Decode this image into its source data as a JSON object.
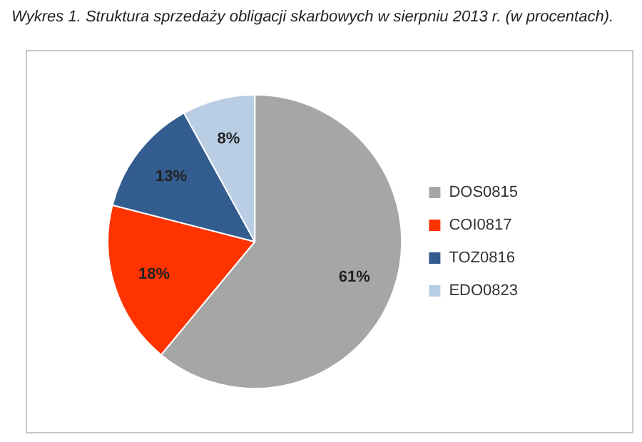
{
  "chart_data": {
    "type": "pie",
    "title": "Wykres 1. Struktura sprzedaży obligacji skarbowych w sierpniu 2013 r. (w procentach).",
    "categories": [
      "DOS0815",
      "COI0817",
      "TOZ0816",
      "EDO0823"
    ],
    "values": [
      61,
      18,
      13,
      8
    ],
    "colors": [
      "#a6a6a6",
      "#ff3300",
      "#335c8f",
      "#b9cde5"
    ],
    "value_labels": [
      "61%",
      "18%",
      "13%",
      "8%"
    ],
    "legend": "right"
  }
}
